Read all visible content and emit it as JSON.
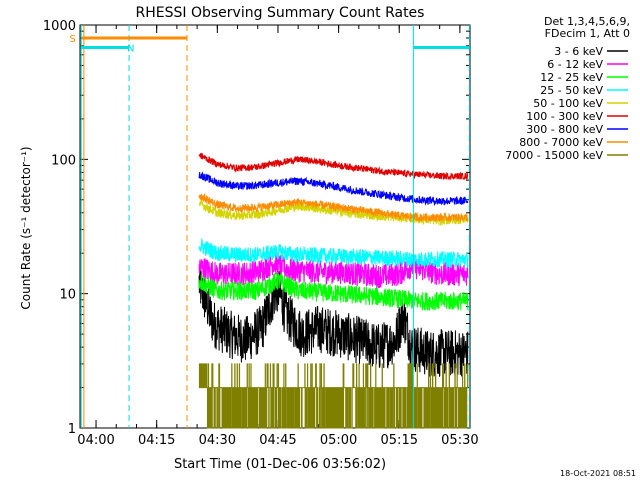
{
  "chart_data": {
    "type": "line",
    "title": "RHESSI Observing Summary Count Rates",
    "xlabel": "Start Time (01-Dec-06 03:56:02)",
    "ylabel": "Count Rate (s⁻¹ detector⁻¹)",
    "y_scale": "log",
    "ylim": [
      1,
      1000
    ],
    "xlim": [
      "03:56:02",
      "05:32:30"
    ],
    "x_ticks": [
      "04:00",
      "04:15",
      "04:30",
      "04:45",
      "05:00",
      "05:15",
      "05:30"
    ],
    "y_ticks": [
      "1",
      "10",
      "100",
      "1000"
    ],
    "legend": {
      "placement": "right-outside",
      "header": [
        "Det 1,3,4,5,6,9,",
        "FDecim 1, Att 0"
      ]
    },
    "flags": [
      {
        "label": "S",
        "color": "#ff8c00"
      },
      {
        "label": "N",
        "color": "#00e0e0"
      }
    ],
    "vertical_markers": [
      {
        "time": "03:57:00",
        "color": "#ff8c00",
        "style": "solid"
      },
      {
        "time": "03:56:20",
        "color": "#00e0e0",
        "style": "solid"
      },
      {
        "time": "04:08:10",
        "color": "#00e0e0",
        "style": "dashed"
      },
      {
        "time": "04:22:30",
        "color": "#ff8c00",
        "style": "dashed"
      },
      {
        "time": "05:18:30",
        "color": "#00e0e0",
        "style": "solid"
      },
      {
        "time": "05:32:20",
        "color": "#00e0e0",
        "style": "dashed"
      }
    ],
    "flag_bars": [
      {
        "label": "S",
        "color": "#ff8c00",
        "start": "03:56:30",
        "end": "04:22:30",
        "level": 800
      },
      {
        "label": "N",
        "color": "#00e0e0",
        "start": "03:56:20",
        "end": "04:08:10",
        "level": 680
      },
      {
        "label": "",
        "color": "#00e0e0",
        "start": "05:18:30",
        "end": "05:32:20",
        "level": 680
      }
    ],
    "data_window": {
      "start": "04:25:30",
      "end": "05:32:00"
    },
    "series": [
      {
        "name": "3 - 6 keV",
        "color": "#000000",
        "x": [
          "04:25:30",
          "04:29:00",
          "04:33:00",
          "04:37:00",
          "04:41:00",
          "04:43:30",
          "04:45:00",
          "04:47:00",
          "04:51:00",
          "04:55:00",
          "05:00:00",
          "05:05:00",
          "05:10:00",
          "05:14:00",
          "05:16:00",
          "05:18:00",
          "05:22:00",
          "05:26:00",
          "05:32:00"
        ],
        "values": [
          12,
          6,
          5,
          4.5,
          5.5,
          9,
          11,
          7,
          5,
          5.5,
          5,
          4.5,
          4,
          4.5,
          7,
          4,
          3.6,
          3.6,
          3.6
        ]
      },
      {
        "name": "6 - 12 keV",
        "color": "#ff00ff",
        "x": [
          "04:25:30",
          "04:30:00",
          "04:35:00",
          "04:40:00",
          "04:44:00",
          "04:48:00",
          "04:55:00",
          "05:00:00",
          "05:05:00",
          "05:10:00",
          "05:15:00",
          "05:18:00",
          "05:25:00",
          "05:32:00"
        ],
        "values": [
          16,
          14,
          14,
          14.5,
          17,
          15,
          14.5,
          14.5,
          14,
          13.5,
          14,
          16,
          14,
          14
        ]
      },
      {
        "name": "12 - 25 keV",
        "color": "#00ff00",
        "x": [
          "04:25:30",
          "04:30:00",
          "04:35:00",
          "04:40:00",
          "04:45:00",
          "04:50:00",
          "05:00:00",
          "05:10:00",
          "05:20:00",
          "05:32:00"
        ],
        "values": [
          12.5,
          10.5,
          10.5,
          10.5,
          12.5,
          10.5,
          10,
          9.5,
          8.8,
          8.8
        ]
      },
      {
        "name": "25 - 50 keV",
        "color": "#00ffff",
        "x": [
          "04:25:30",
          "04:30:00",
          "04:35:00",
          "04:40:00",
          "04:45:00",
          "04:50:00",
          "05:00:00",
          "05:10:00",
          "05:20:00",
          "05:32:00"
        ],
        "values": [
          23,
          20,
          19.5,
          19.5,
          20.5,
          19.5,
          19,
          18.5,
          18,
          18
        ]
      },
      {
        "name": "50 - 100 keV",
        "color": "#d4d400",
        "x": [
          "04:25:30",
          "04:30:00",
          "04:35:00",
          "04:40:00",
          "04:45:00",
          "04:50:00",
          "04:55:00",
          "05:00:00",
          "05:05:00",
          "05:10:00",
          "05:15:00",
          "05:20:00",
          "05:25:00",
          "05:32:00"
        ],
        "values": [
          47,
          40,
          38,
          39,
          42,
          45,
          43,
          41,
          39,
          38,
          37,
          36,
          35,
          36
        ]
      },
      {
        "name": "100 - 300 keV",
        "color": "#e00000",
        "x": [
          "04:25:30",
          "04:30:00",
          "04:35:00",
          "04:40:00",
          "04:45:00",
          "04:50:00",
          "04:55:00",
          "05:00:00",
          "05:05:00",
          "05:10:00",
          "05:15:00",
          "05:20:00",
          "05:25:00",
          "05:32:00"
        ],
        "values": [
          108,
          92,
          86,
          88,
          94,
          100,
          96,
          90,
          86,
          82,
          79,
          77,
          75,
          75
        ]
      },
      {
        "name": "300 - 800 keV",
        "color": "#0000ff",
        "x": [
          "04:25:30",
          "04:30:00",
          "04:35:00",
          "04:40:00",
          "04:45:00",
          "04:50:00",
          "04:55:00",
          "05:00:00",
          "05:05:00",
          "05:10:00",
          "05:15:00",
          "05:20:00",
          "05:25:00",
          "05:32:00"
        ],
        "values": [
          77,
          67,
          63,
          64,
          67,
          69,
          66,
          62,
          58,
          55,
          52,
          50,
          49,
          49
        ]
      },
      {
        "name": "800 - 7000 keV",
        "color": "#ff8c00",
        "x": [
          "04:25:30",
          "04:30:00",
          "04:35:00",
          "04:40:00",
          "04:45:00",
          "04:50:00",
          "04:55:00",
          "05:00:00",
          "05:05:00",
          "05:10:00",
          "05:15:00",
          "05:20:00",
          "05:25:00",
          "05:32:00"
        ],
        "values": [
          54,
          46,
          43,
          44,
          46,
          48,
          46,
          44,
          42,
          40,
          38,
          37,
          37,
          37
        ]
      },
      {
        "name": "7000 - 15000 keV",
        "color": "#808000",
        "x": [
          "04:25:30",
          "05:32:00"
        ],
        "values": [
          2,
          2
        ],
        "note_values": [
          1,
          2,
          3
        ]
      }
    ]
  },
  "footer": {
    "timestamp": "18-Oct-2021 08:51"
  }
}
